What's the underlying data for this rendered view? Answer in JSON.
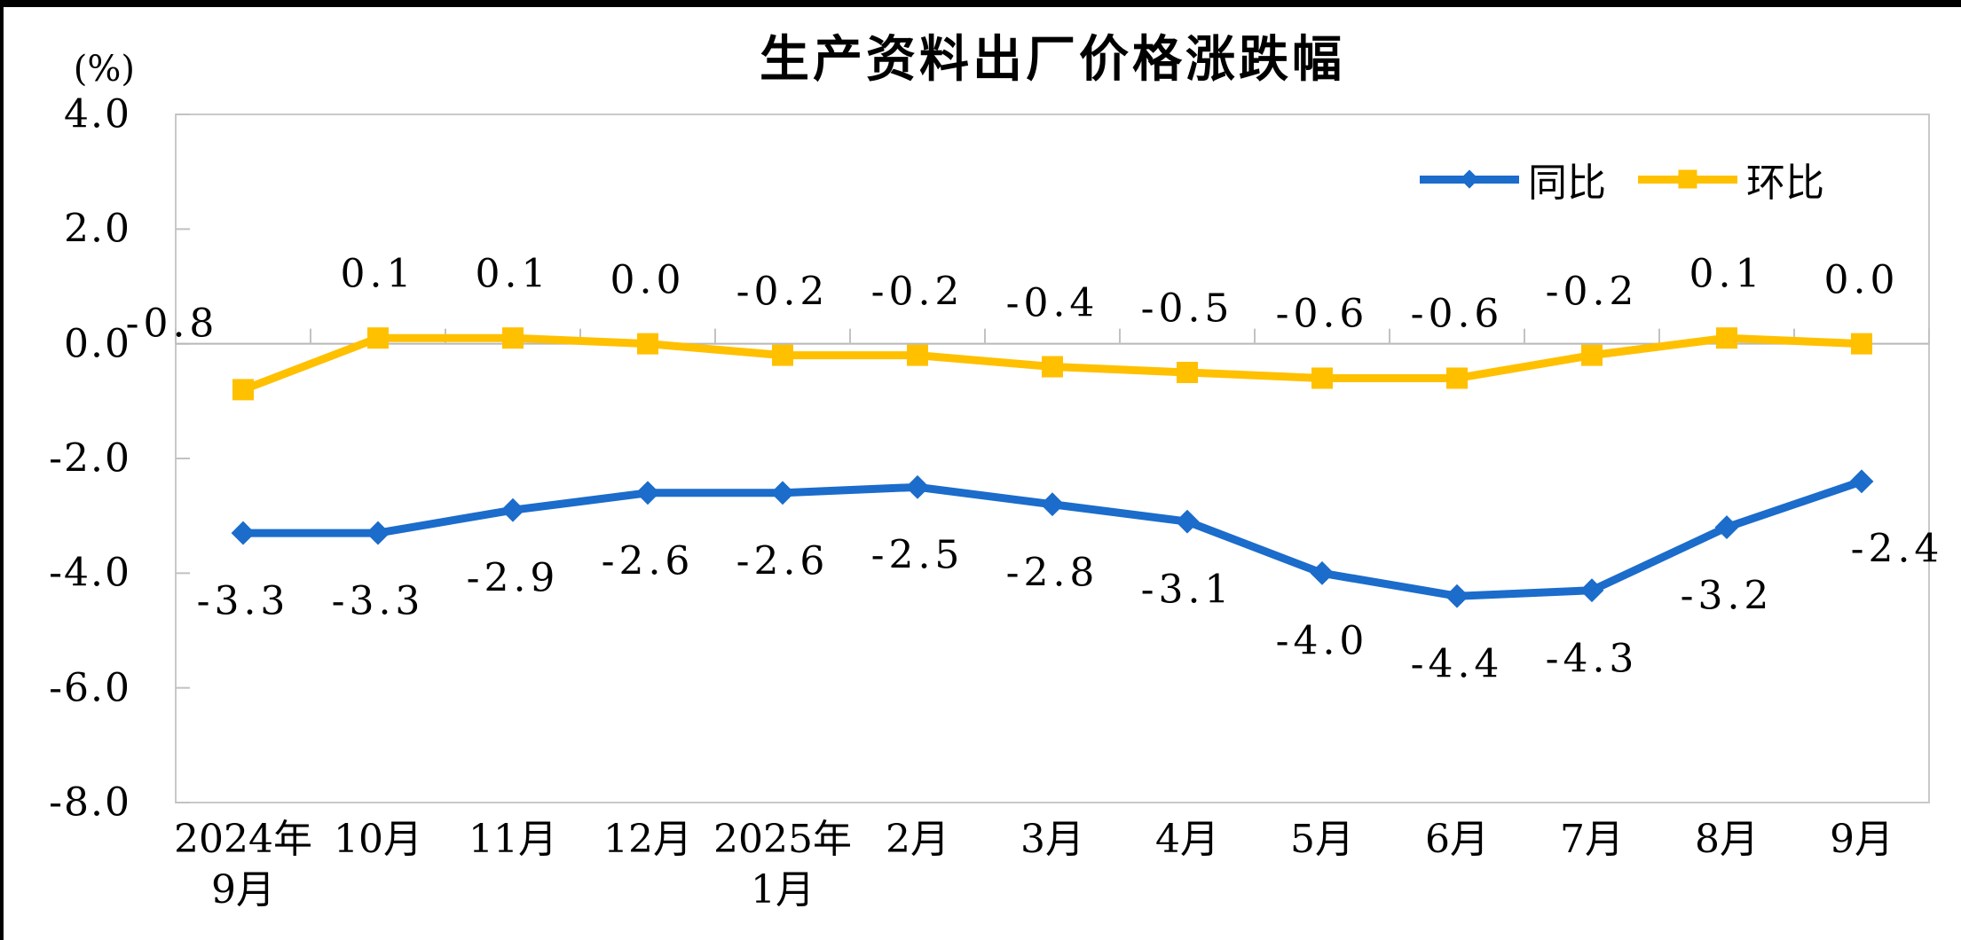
{
  "chart_data": {
    "type": "line",
    "title": "生产资料出厂价格涨跌幅",
    "unit_label": "(%)",
    "categories": [
      [
        "2024年",
        "9月"
      ],
      [
        "10月"
      ],
      [
        "11月"
      ],
      [
        "12月"
      ],
      [
        "2025年",
        "1月"
      ],
      [
        "2月"
      ],
      [
        "3月"
      ],
      [
        "4月"
      ],
      [
        "5月"
      ],
      [
        "6月"
      ],
      [
        "7月"
      ],
      [
        "8月"
      ],
      [
        "9月"
      ]
    ],
    "series": [
      {
        "name": "同比",
        "color": "#1B6CCB",
        "marker": "diamond",
        "values": [
          -3.3,
          -3.3,
          -2.9,
          -2.6,
          -2.6,
          -2.5,
          -2.8,
          -3.1,
          -4.0,
          -4.4,
          -4.3,
          -3.2,
          -2.4
        ],
        "label_position": "below",
        "label_offset_default": [
          0,
          77
        ],
        "label_offset_exceptions": {
          "12": [
            40,
            76
          ]
        }
      },
      {
        "name": "环比",
        "color": "#FFC000",
        "marker": "square",
        "values": [
          -0.8,
          0.1,
          0.1,
          0.0,
          -0.2,
          -0.2,
          -0.4,
          -0.5,
          -0.6,
          -0.6,
          -0.2,
          0.1,
          0.0
        ],
        "label_position": "above",
        "label_offset_default": [
          0,
          -72
        ],
        "label_offset_exceptions": {
          "0": [
            -80,
            -74
          ]
        }
      }
    ],
    "y_axis": {
      "min": -8.0,
      "max": 4.0,
      "step": 2.0,
      "tick_labels": [
        "4.0",
        "2.0",
        "0.0",
        "-2.0",
        "-4.0",
        "-6.0",
        "-8.0"
      ]
    },
    "x_axis": {
      "baseline_value": 0,
      "tick_marks": "category-boundaries"
    },
    "legend_position": "top-right",
    "gridlines": "zero-line-only",
    "colors": {
      "plot_border": "#C9C9C9",
      "zero_line": "#B8B8B8",
      "tick": "#C2C2C2",
      "text": "#000000",
      "frame": "#000000"
    }
  }
}
